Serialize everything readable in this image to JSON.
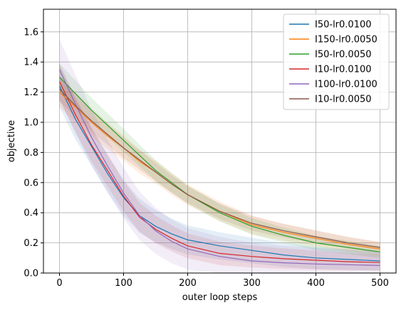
{
  "chart_data": {
    "type": "line",
    "xlabel": "outer loop steps",
    "ylabel": "objective",
    "xlim": [
      -25,
      525
    ],
    "ylim": [
      0.0,
      1.75
    ],
    "xticks": [
      0,
      100,
      200,
      300,
      400,
      500
    ],
    "yticks": [
      0.0,
      0.2,
      0.4,
      0.6,
      0.8,
      1.0,
      1.2,
      1.4,
      1.6
    ],
    "grid": true,
    "legend_position": "top-right",
    "x": [
      0,
      25,
      50,
      75,
      100,
      125,
      150,
      175,
      200,
      250,
      300,
      350,
      400,
      450,
      500
    ],
    "series": [
      {
        "name": "I50-lr0.0100",
        "color": "#1f77b4",
        "values": [
          1.24,
          1.02,
          0.84,
          0.66,
          0.5,
          0.38,
          0.31,
          0.26,
          0.22,
          0.18,
          0.15,
          0.12,
          0.1,
          0.09,
          0.08
        ],
        "band": 0.14
      },
      {
        "name": "I150-lr0.0050",
        "color": "#ff7f0e",
        "values": [
          1.2,
          1.1,
          1.0,
          0.91,
          0.83,
          0.74,
          0.67,
          0.59,
          0.52,
          0.41,
          0.32,
          0.27,
          0.23,
          0.19,
          0.16
        ],
        "band": 0.1
      },
      {
        "name": "I50-lr0.0050",
        "color": "#2ca02c",
        "values": [
          1.3,
          1.19,
          1.08,
          0.98,
          0.88,
          0.78,
          0.68,
          0.6,
          0.52,
          0.4,
          0.31,
          0.25,
          0.2,
          0.17,
          0.14
        ],
        "band": 0.09
      },
      {
        "name": "I10-lr0.0100",
        "color": "#d62728",
        "values": [
          1.27,
          1.05,
          0.85,
          0.68,
          0.51,
          0.37,
          0.29,
          0.23,
          0.18,
          0.13,
          0.11,
          0.095,
          0.085,
          0.075,
          0.07
        ],
        "band": 0.12
      },
      {
        "name": "I100-lr0.0100",
        "color": "#9467bd",
        "values": [
          1.35,
          1.12,
          0.9,
          0.71,
          0.53,
          0.38,
          0.28,
          0.21,
          0.16,
          0.11,
          0.08,
          0.068,
          0.06,
          0.055,
          0.05
        ],
        "band": 0.2
      },
      {
        "name": "I10-lr0.0050",
        "color": "#8c564b",
        "values": [
          1.22,
          1.11,
          1.01,
          0.92,
          0.83,
          0.75,
          0.67,
          0.59,
          0.52,
          0.41,
          0.33,
          0.28,
          0.24,
          0.2,
          0.17
        ],
        "band": 0.08
      }
    ]
  }
}
